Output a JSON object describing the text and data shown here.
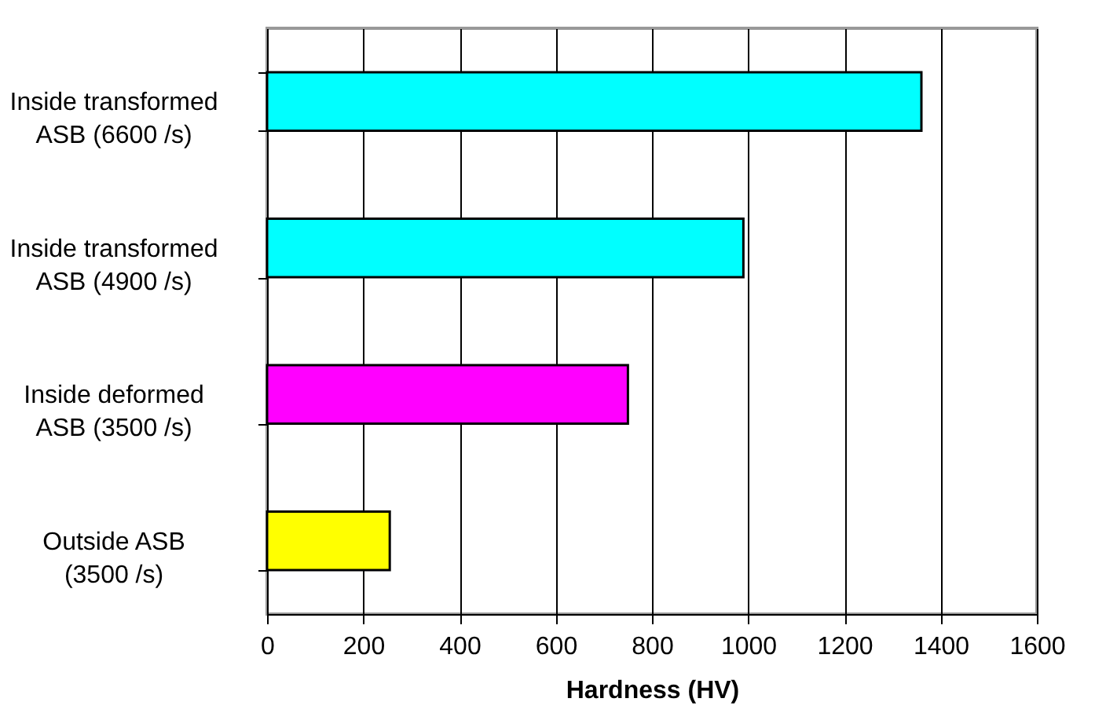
{
  "chart_data": {
    "type": "bar",
    "orientation": "horizontal",
    "xlabel": "Hardness (HV)",
    "categories": [
      "Inside transformed\nASB (6600 /s)",
      "Inside transformed\nASB (4900 /s)",
      "Inside deformed\nASB (3500 /s)",
      "Outside ASB\n(3500 /s)"
    ],
    "values": [
      1360,
      990,
      750,
      255
    ],
    "colors": [
      "#00ffff",
      "#00ffff",
      "#ff00ff",
      "#ffff00"
    ],
    "xlim": [
      0,
      1600
    ],
    "xticks": [
      0,
      200,
      400,
      600,
      800,
      1000,
      1200,
      1400,
      1600
    ],
    "grid": "x"
  }
}
